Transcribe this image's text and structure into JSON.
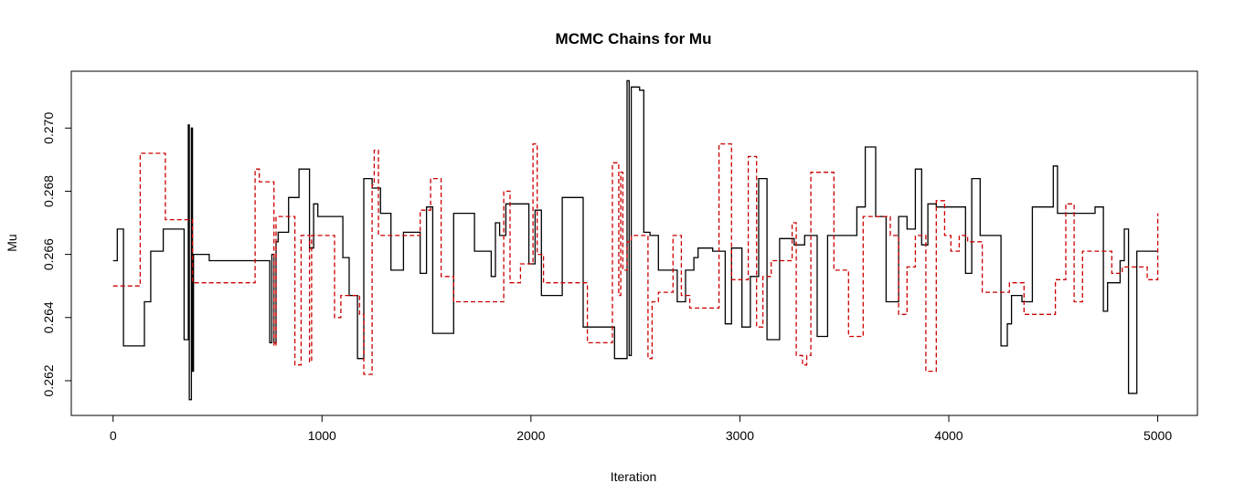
{
  "chart_data": {
    "type": "line",
    "title": "MCMC Chains for Mu",
    "xlabel": "Iteration",
    "ylabel": "Mu",
    "xlim": [
      -200,
      5190
    ],
    "ylim": [
      0.2609,
      0.2718
    ],
    "xticks": [
      0,
      1000,
      2000,
      3000,
      4000,
      5000
    ],
    "xtick_labels": [
      "0",
      "1000",
      "2000",
      "3000",
      "4000",
      "5000"
    ],
    "yticks": [
      0.262,
      0.264,
      0.266,
      0.268,
      0.27
    ],
    "ytick_labels": [
      "0.262",
      "0.264",
      "0.266",
      "0.268",
      "0.270"
    ],
    "grid": false,
    "legend": "none",
    "series": [
      {
        "color": "#000000",
        "linestyle": "solid",
        "x": [
          0,
          20,
          50,
          150,
          180,
          240,
          340,
          360,
          365,
          375,
          380,
          385,
          460,
          550,
          750,
          760,
          770,
          780,
          790,
          800,
          840,
          890,
          940,
          960,
          980,
          1100,
          1130,
          1170,
          1200,
          1240,
          1280,
          1330,
          1390,
          1420,
          1470,
          1500,
          1530,
          1600,
          1630,
          1650,
          1730,
          1810,
          1830,
          1850,
          1880,
          1920,
          1990,
          2020,
          2050,
          2090,
          2150,
          2180,
          2250,
          2300,
          2400,
          2460,
          2470,
          2480,
          2520,
          2540,
          2570,
          2610,
          2650,
          2700,
          2740,
          2780,
          2800,
          2870,
          2930,
          2960,
          3010,
          3050,
          3090,
          3130,
          3190,
          3260,
          3310,
          3370,
          3420,
          3510,
          3560,
          3600,
          3650,
          3700,
          3760,
          3800,
          3840,
          3870,
          3900,
          3940,
          3980,
          4010,
          4080,
          4110,
          4150,
          4180,
          4220,
          4250,
          4280,
          4300,
          4350,
          4400,
          4420,
          4500,
          4520,
          4550,
          4600,
          4700,
          4740,
          4760,
          4790,
          4820,
          4840,
          4860,
          4880,
          4900,
          4950,
          5000
        ],
        "y": [
          0.2658,
          0.2668,
          0.2631,
          0.2645,
          0.2661,
          0.2668,
          0.2633,
          0.2701,
          0.2614,
          0.27,
          0.2623,
          0.266,
          0.2658,
          0.2658,
          0.2632,
          0.266,
          0.2632,
          0.2664,
          0.2667,
          0.2667,
          0.2678,
          0.2687,
          0.2662,
          0.2676,
          0.2672,
          0.2659,
          0.2647,
          0.2627,
          0.2684,
          0.2681,
          0.2673,
          0.2655,
          0.2667,
          0.2667,
          0.2654,
          0.2675,
          0.2635,
          0.2635,
          0.2673,
          0.2673,
          0.2661,
          0.2653,
          0.267,
          0.2666,
          0.2676,
          0.2676,
          0.2657,
          0.2674,
          0.2647,
          0.2647,
          0.2678,
          0.2678,
          0.2637,
          0.2637,
          0.2627,
          0.2715,
          0.2628,
          0.2713,
          0.2712,
          0.2667,
          0.2666,
          0.2655,
          0.2655,
          0.2645,
          0.2655,
          0.2659,
          0.2662,
          0.2661,
          0.2638,
          0.2662,
          0.2637,
          0.2653,
          0.2684,
          0.2633,
          0.2665,
          0.2663,
          0.2666,
          0.2634,
          0.2666,
          0.2666,
          0.2675,
          0.2694,
          0.2672,
          0.2645,
          0.2672,
          0.2668,
          0.2687,
          0.2663,
          0.2676,
          0.2675,
          0.2675,
          0.2675,
          0.2654,
          0.2684,
          0.2666,
          0.2666,
          0.2666,
          0.2631,
          0.2638,
          0.2647,
          0.2645,
          0.2675,
          0.2675,
          0.2688,
          0.2673,
          0.2673,
          0.2673,
          0.2675,
          0.2642,
          0.2651,
          0.2651,
          0.2658,
          0.2668,
          0.2616,
          0.2616,
          0.2661,
          0.2661,
          0.2661
        ]
      },
      {
        "color": "#cc0000",
        "linestyle": "dashed",
        "x": [
          0,
          130,
          250,
          380,
          680,
          700,
          770,
          780,
          870,
          900,
          940,
          950,
          1060,
          1090,
          1180,
          1200,
          1240,
          1250,
          1270,
          1310,
          1440,
          1470,
          1520,
          1570,
          1630,
          1650,
          1700,
          1800,
          1870,
          1900,
          1950,
          2010,
          2030,
          2060,
          2100,
          2270,
          2300,
          2390,
          2420,
          2430,
          2440,
          2460,
          2480,
          2560,
          2580,
          2610,
          2680,
          2720,
          2760,
          2820,
          2900,
          2960,
          3010,
          3040,
          3080,
          3110,
          3150,
          3190,
          3250,
          3270,
          3300,
          3320,
          3340,
          3360,
          3400,
          3450,
          3520,
          3590,
          3650,
          3720,
          3760,
          3800,
          3840,
          3890,
          3940,
          3980,
          4010,
          4050,
          4090,
          4120,
          4160,
          4180,
          4220,
          4250,
          4290,
          4340,
          4360,
          4420,
          4460,
          4490,
          4510,
          4530,
          4560,
          4600,
          4640,
          4680,
          4710,
          4740,
          4780,
          4830,
          4870,
          4920,
          4950,
          5000
        ],
        "y": [
          0.265,
          0.2692,
          0.2671,
          0.2651,
          0.2687,
          0.2683,
          0.2631,
          0.2672,
          0.2625,
          0.2666,
          0.2626,
          0.2666,
          0.264,
          0.2647,
          0.2641,
          0.2622,
          0.2682,
          0.2693,
          0.2666,
          0.2666,
          0.2666,
          0.2674,
          0.2684,
          0.2653,
          0.2645,
          0.2645,
          0.2645,
          0.2645,
          0.268,
          0.2651,
          0.2657,
          0.2695,
          0.266,
          0.2651,
          0.2651,
          0.2632,
          0.2632,
          0.2689,
          0.2647,
          0.2686,
          0.2655,
          0.2664,
          0.2666,
          0.2627,
          0.2645,
          0.2648,
          0.2666,
          0.2647,
          0.2643,
          0.2643,
          0.2695,
          0.2652,
          0.2652,
          0.2691,
          0.2637,
          0.2653,
          0.2658,
          0.2658,
          0.267,
          0.2628,
          0.2625,
          0.2628,
          0.2686,
          0.2686,
          0.2686,
          0.2655,
          0.2634,
          0.2672,
          0.2672,
          0.2666,
          0.2641,
          0.2656,
          0.2666,
          0.2623,
          0.2677,
          0.2666,
          0.2661,
          0.2666,
          0.2664,
          0.2664,
          0.2648,
          0.2648,
          0.2648,
          0.2648,
          0.2651,
          0.2651,
          0.2641,
          0.2641,
          0.2641,
          0.2641,
          0.2652,
          0.2652,
          0.2676,
          0.2645,
          0.2661,
          0.2661,
          0.2661,
          0.2661,
          0.2654,
          0.2656,
          0.2656,
          0.2656,
          0.2652,
          0.2673
        ]
      }
    ]
  }
}
